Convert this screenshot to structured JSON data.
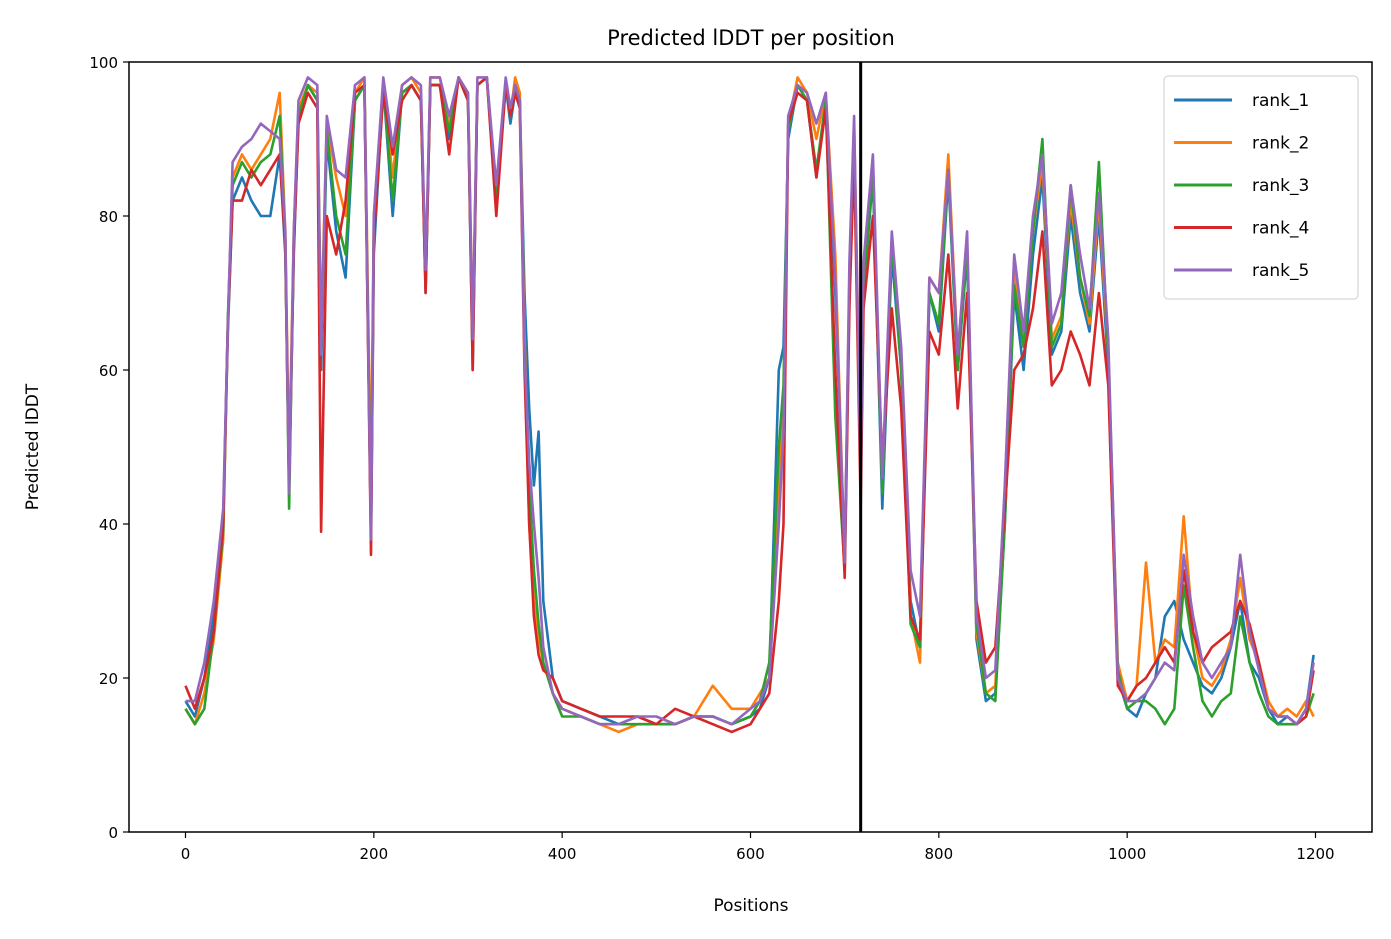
{
  "chart_data": {
    "type": "line",
    "title": "Predicted lDDT per position",
    "xlabel": "Positions",
    "ylabel": "Predicted lDDT",
    "xlim": [
      -60,
      1260
    ],
    "ylim": [
      0,
      100
    ],
    "xticks": [
      0,
      200,
      400,
      600,
      800,
      1000,
      1200
    ],
    "yticks": [
      0,
      20,
      40,
      60,
      80,
      100
    ],
    "grid": false,
    "legend_position": "top-right",
    "vertical_line_x": 717,
    "series": [
      {
        "name": "rank_1",
        "color": "#1f77b4",
        "x": [
          0,
          10,
          20,
          30,
          40,
          45,
          50,
          60,
          70,
          80,
          90,
          100,
          106,
          110,
          115,
          120,
          130,
          140,
          144,
          150,
          160,
          170,
          180,
          190,
          197,
          200,
          210,
          220,
          230,
          240,
          250,
          255,
          260,
          270,
          280,
          290,
          300,
          305,
          310,
          320,
          330,
          340,
          345,
          350,
          355,
          360,
          365,
          370,
          375,
          380,
          390,
          400,
          420,
          440,
          460,
          480,
          500,
          520,
          540,
          560,
          580,
          600,
          610,
          620,
          630,
          635,
          640,
          650,
          660,
          670,
          680,
          690,
          700,
          705,
          710,
          717,
          720,
          730,
          740,
          750,
          760,
          770,
          780,
          790,
          800,
          810,
          820,
          830,
          840,
          850,
          860,
          870,
          880,
          890,
          900,
          910,
          920,
          930,
          940,
          950,
          960,
          970,
          980,
          990,
          1000,
          1010,
          1020,
          1030,
          1040,
          1050,
          1060,
          1070,
          1080,
          1090,
          1100,
          1110,
          1120,
          1130,
          1140,
          1150,
          1160,
          1170,
          1180,
          1190,
          1198
        ],
        "y": [
          17,
          15,
          20,
          28,
          40,
          65,
          82,
          85,
          82,
          80,
          80,
          88,
          75,
          45,
          75,
          93,
          97,
          95,
          60,
          90,
          78,
          72,
          95,
          97,
          38,
          75,
          97,
          80,
          96,
          97,
          95,
          70,
          97,
          97,
          90,
          98,
          95,
          60,
          97,
          98,
          82,
          97,
          92,
          96,
          95,
          70,
          55,
          45,
          52,
          30,
          20,
          17,
          16,
          15,
          14,
          15,
          14,
          14,
          15,
          15,
          14,
          15,
          16,
          20,
          60,
          63,
          90,
          97,
          95,
          85,
          95,
          70,
          36,
          70,
          90,
          45,
          70,
          85,
          42,
          75,
          60,
          30,
          24,
          70,
          65,
          85,
          60,
          75,
          25,
          17,
          18,
          40,
          70,
          60,
          75,
          85,
          62,
          65,
          80,
          70,
          65,
          80,
          60,
          20,
          16,
          15,
          18,
          20,
          28,
          30,
          25,
          22,
          19,
          18,
          20,
          24,
          30,
          22,
          20,
          16,
          14,
          15,
          14,
          16,
          23
        ]
      },
      {
        "name": "rank_2",
        "color": "#ff7f0e",
        "x": [
          0,
          10,
          20,
          30,
          40,
          45,
          50,
          60,
          70,
          80,
          90,
          100,
          106,
          110,
          115,
          120,
          130,
          140,
          144,
          150,
          160,
          170,
          180,
          190,
          197,
          200,
          210,
          220,
          230,
          240,
          250,
          255,
          260,
          270,
          280,
          290,
          300,
          305,
          310,
          320,
          330,
          340,
          345,
          350,
          355,
          360,
          365,
          370,
          375,
          380,
          390,
          400,
          420,
          440,
          460,
          480,
          500,
          520,
          540,
          560,
          580,
          600,
          610,
          620,
          630,
          635,
          640,
          650,
          660,
          670,
          680,
          690,
          700,
          705,
          710,
          717,
          720,
          730,
          740,
          750,
          760,
          770,
          780,
          790,
          800,
          810,
          820,
          830,
          840,
          850,
          860,
          870,
          880,
          890,
          900,
          910,
          920,
          930,
          940,
          950,
          960,
          970,
          980,
          990,
          1000,
          1010,
          1020,
          1030,
          1040,
          1050,
          1060,
          1070,
          1080,
          1090,
          1100,
          1110,
          1120,
          1130,
          1140,
          1150,
          1160,
          1170,
          1180,
          1190,
          1198
        ],
        "y": [
          16,
          14,
          18,
          25,
          38,
          66,
          85,
          88,
          86,
          88,
          90,
          96,
          78,
          48,
          78,
          94,
          97,
          96,
          65,
          92,
          85,
          80,
          96,
          98,
          45,
          80,
          97,
          85,
          97,
          98,
          96,
          72,
          98,
          98,
          92,
          98,
          96,
          65,
          97,
          98,
          83,
          97,
          93,
          98,
          96,
          65,
          40,
          30,
          25,
          22,
          18,
          16,
          15,
          14,
          13,
          14,
          14,
          14,
          15,
          19,
          16,
          16,
          18,
          20,
          45,
          55,
          92,
          98,
          96,
          90,
          96,
          75,
          35,
          72,
          92,
          48,
          72,
          87,
          45,
          77,
          62,
          28,
          22,
          72,
          70,
          88,
          62,
          77,
          26,
          18,
          19,
          42,
          73,
          63,
          78,
          87,
          64,
          67,
          82,
          72,
          66,
          82,
          62,
          22,
          17,
          19,
          35,
          22,
          25,
          24,
          41,
          26,
          20,
          19,
          21,
          25,
          33,
          25,
          22,
          17,
          15,
          16,
          15,
          17,
          15
        ]
      },
      {
        "name": "rank_3",
        "color": "#2ca02c",
        "x": [
          0,
          10,
          20,
          30,
          40,
          45,
          50,
          60,
          70,
          80,
          90,
          100,
          106,
          110,
          115,
          120,
          130,
          140,
          144,
          150,
          160,
          170,
          180,
          190,
          197,
          200,
          210,
          220,
          230,
          240,
          250,
          255,
          260,
          270,
          280,
          290,
          300,
          305,
          310,
          320,
          330,
          340,
          345,
          350,
          355,
          360,
          365,
          370,
          375,
          380,
          390,
          400,
          420,
          440,
          460,
          480,
          500,
          520,
          540,
          560,
          580,
          600,
          610,
          620,
          630,
          635,
          640,
          650,
          660,
          670,
          680,
          690,
          700,
          705,
          710,
          717,
          720,
          730,
          740,
          750,
          760,
          770,
          780,
          790,
          800,
          810,
          820,
          830,
          840,
          850,
          860,
          870,
          880,
          890,
          900,
          910,
          920,
          930,
          940,
          950,
          960,
          970,
          980,
          990,
          1000,
          1010,
          1020,
          1030,
          1040,
          1050,
          1060,
          1070,
          1080,
          1090,
          1100,
          1110,
          1120,
          1130,
          1140,
          1150,
          1160,
          1170,
          1180,
          1190,
          1198
        ],
        "y": [
          16,
          14,
          16,
          26,
          39,
          67,
          84,
          87,
          85,
          87,
          88,
          93,
          77,
          42,
          77,
          93,
          97,
          95,
          62,
          91,
          80,
          75,
          95,
          97,
          40,
          78,
          97,
          82,
          96,
          97,
          95,
          71,
          97,
          97,
          91,
          98,
          95,
          62,
          97,
          98,
          82,
          97,
          93,
          97,
          95,
          62,
          45,
          34,
          27,
          22,
          18,
          15,
          15,
          14,
          14,
          14,
          14,
          14,
          15,
          15,
          14,
          15,
          17,
          22,
          50,
          58,
          91,
          97,
          95,
          86,
          95,
          54,
          34,
          70,
          90,
          46,
          70,
          86,
          44,
          77,
          60,
          27,
          24,
          70,
          66,
          86,
          60,
          76,
          27,
          18,
          17,
          40,
          71,
          63,
          78,
          90,
          63,
          66,
          84,
          72,
          67,
          87,
          62,
          21,
          16,
          17,
          17,
          16,
          14,
          16,
          32,
          24,
          17,
          15,
          17,
          18,
          28,
          22,
          18,
          15,
          14,
          14,
          14,
          15,
          18
        ]
      },
      {
        "name": "rank_4",
        "color": "#d62728",
        "x": [
          0,
          10,
          20,
          30,
          40,
          45,
          50,
          60,
          70,
          80,
          90,
          100,
          106,
          110,
          115,
          120,
          130,
          140,
          144,
          150,
          160,
          170,
          180,
          190,
          197,
          200,
          210,
          220,
          230,
          240,
          250,
          255,
          260,
          270,
          280,
          290,
          300,
          305,
          310,
          320,
          330,
          340,
          345,
          350,
          355,
          360,
          365,
          370,
          375,
          380,
          390,
          400,
          420,
          440,
          460,
          480,
          500,
          520,
          540,
          560,
          580,
          600,
          610,
          620,
          630,
          635,
          640,
          650,
          660,
          670,
          680,
          690,
          700,
          705,
          710,
          717,
          720,
          730,
          740,
          750,
          760,
          770,
          780,
          790,
          800,
          810,
          820,
          830,
          840,
          850,
          860,
          870,
          880,
          890,
          900,
          910,
          920,
          930,
          940,
          950,
          960,
          970,
          980,
          990,
          1000,
          1010,
          1020,
          1030,
          1040,
          1050,
          1060,
          1070,
          1080,
          1090,
          1100,
          1110,
          1120,
          1130,
          1140,
          1150,
          1160,
          1170,
          1180,
          1190,
          1198
        ],
        "y": [
          19,
          16,
          20,
          26,
          40,
          66,
          82,
          82,
          86,
          84,
          86,
          88,
          76,
          45,
          76,
          92,
          96,
          94,
          39,
          80,
          75,
          82,
          96,
          97,
          36,
          77,
          96,
          88,
          95,
          97,
          95,
          70,
          97,
          97,
          88,
          98,
          95,
          60,
          97,
          98,
          80,
          97,
          93,
          96,
          94,
          60,
          40,
          28,
          23,
          21,
          20,
          17,
          16,
          15,
          15,
          15,
          14,
          16,
          15,
          14,
          13,
          14,
          16,
          18,
          30,
          40,
          92,
          96,
          95,
          85,
          94,
          60,
          33,
          68,
          88,
          42,
          68,
          80,
          48,
          68,
          55,
          28,
          25,
          65,
          62,
          75,
          55,
          70,
          30,
          22,
          24,
          42,
          60,
          62,
          68,
          78,
          58,
          60,
          65,
          62,
          58,
          70,
          58,
          19,
          17,
          19,
          20,
          22,
          24,
          22,
          34,
          26,
          22,
          24,
          25,
          26,
          30,
          27,
          22,
          16,
          15,
          15,
          14,
          15,
          21
        ]
      },
      {
        "name": "rank_5",
        "color": "#9467bd",
        "x": [
          0,
          10,
          20,
          30,
          40,
          45,
          50,
          60,
          70,
          80,
          90,
          100,
          106,
          110,
          115,
          120,
          130,
          140,
          144,
          150,
          160,
          170,
          180,
          190,
          197,
          200,
          210,
          220,
          230,
          240,
          250,
          255,
          260,
          270,
          280,
          290,
          300,
          305,
          310,
          320,
          330,
          340,
          345,
          350,
          355,
          360,
          365,
          370,
          375,
          380,
          390,
          400,
          420,
          440,
          460,
          480,
          500,
          520,
          540,
          560,
          580,
          600,
          610,
          620,
          630,
          635,
          640,
          650,
          660,
          670,
          680,
          690,
          700,
          705,
          710,
          717,
          720,
          730,
          740,
          750,
          760,
          770,
          780,
          790,
          800,
          810,
          820,
          830,
          840,
          850,
          860,
          870,
          880,
          890,
          900,
          910,
          920,
          930,
          940,
          950,
          960,
          970,
          980,
          990,
          1000,
          1010,
          1020,
          1030,
          1040,
          1050,
          1060,
          1070,
          1080,
          1090,
          1100,
          1110,
          1120,
          1130,
          1140,
          1150,
          1160,
          1170,
          1180,
          1190,
          1198
        ],
        "y": [
          17,
          17,
          22,
          30,
          42,
          66,
          87,
          89,
          90,
          92,
          91,
          90,
          78,
          44,
          78,
          95,
          98,
          97,
          62,
          93,
          86,
          85,
          97,
          98,
          38,
          80,
          98,
          89,
          97,
          98,
          97,
          73,
          98,
          98,
          93,
          98,
          96,
          64,
          98,
          98,
          84,
          98,
          94,
          97,
          95,
          62,
          48,
          40,
          33,
          24,
          18,
          16,
          15,
          14,
          14,
          15,
          15,
          14,
          15,
          15,
          14,
          16,
          17,
          20,
          40,
          52,
          93,
          97,
          96,
          92,
          96,
          72,
          35,
          74,
          93,
          46,
          74,
          88,
          46,
          78,
          63,
          34,
          28,
          72,
          70,
          86,
          62,
          78,
          28,
          20,
          21,
          45,
          75,
          65,
          80,
          88,
          66,
          70,
          84,
          75,
          68,
          83,
          64,
          20,
          17,
          17,
          18,
          20,
          22,
          21,
          36,
          28,
          22,
          20,
          22,
          24,
          36,
          26,
          21,
          16,
          15,
          15,
          14,
          16,
          22
        ]
      }
    ]
  }
}
